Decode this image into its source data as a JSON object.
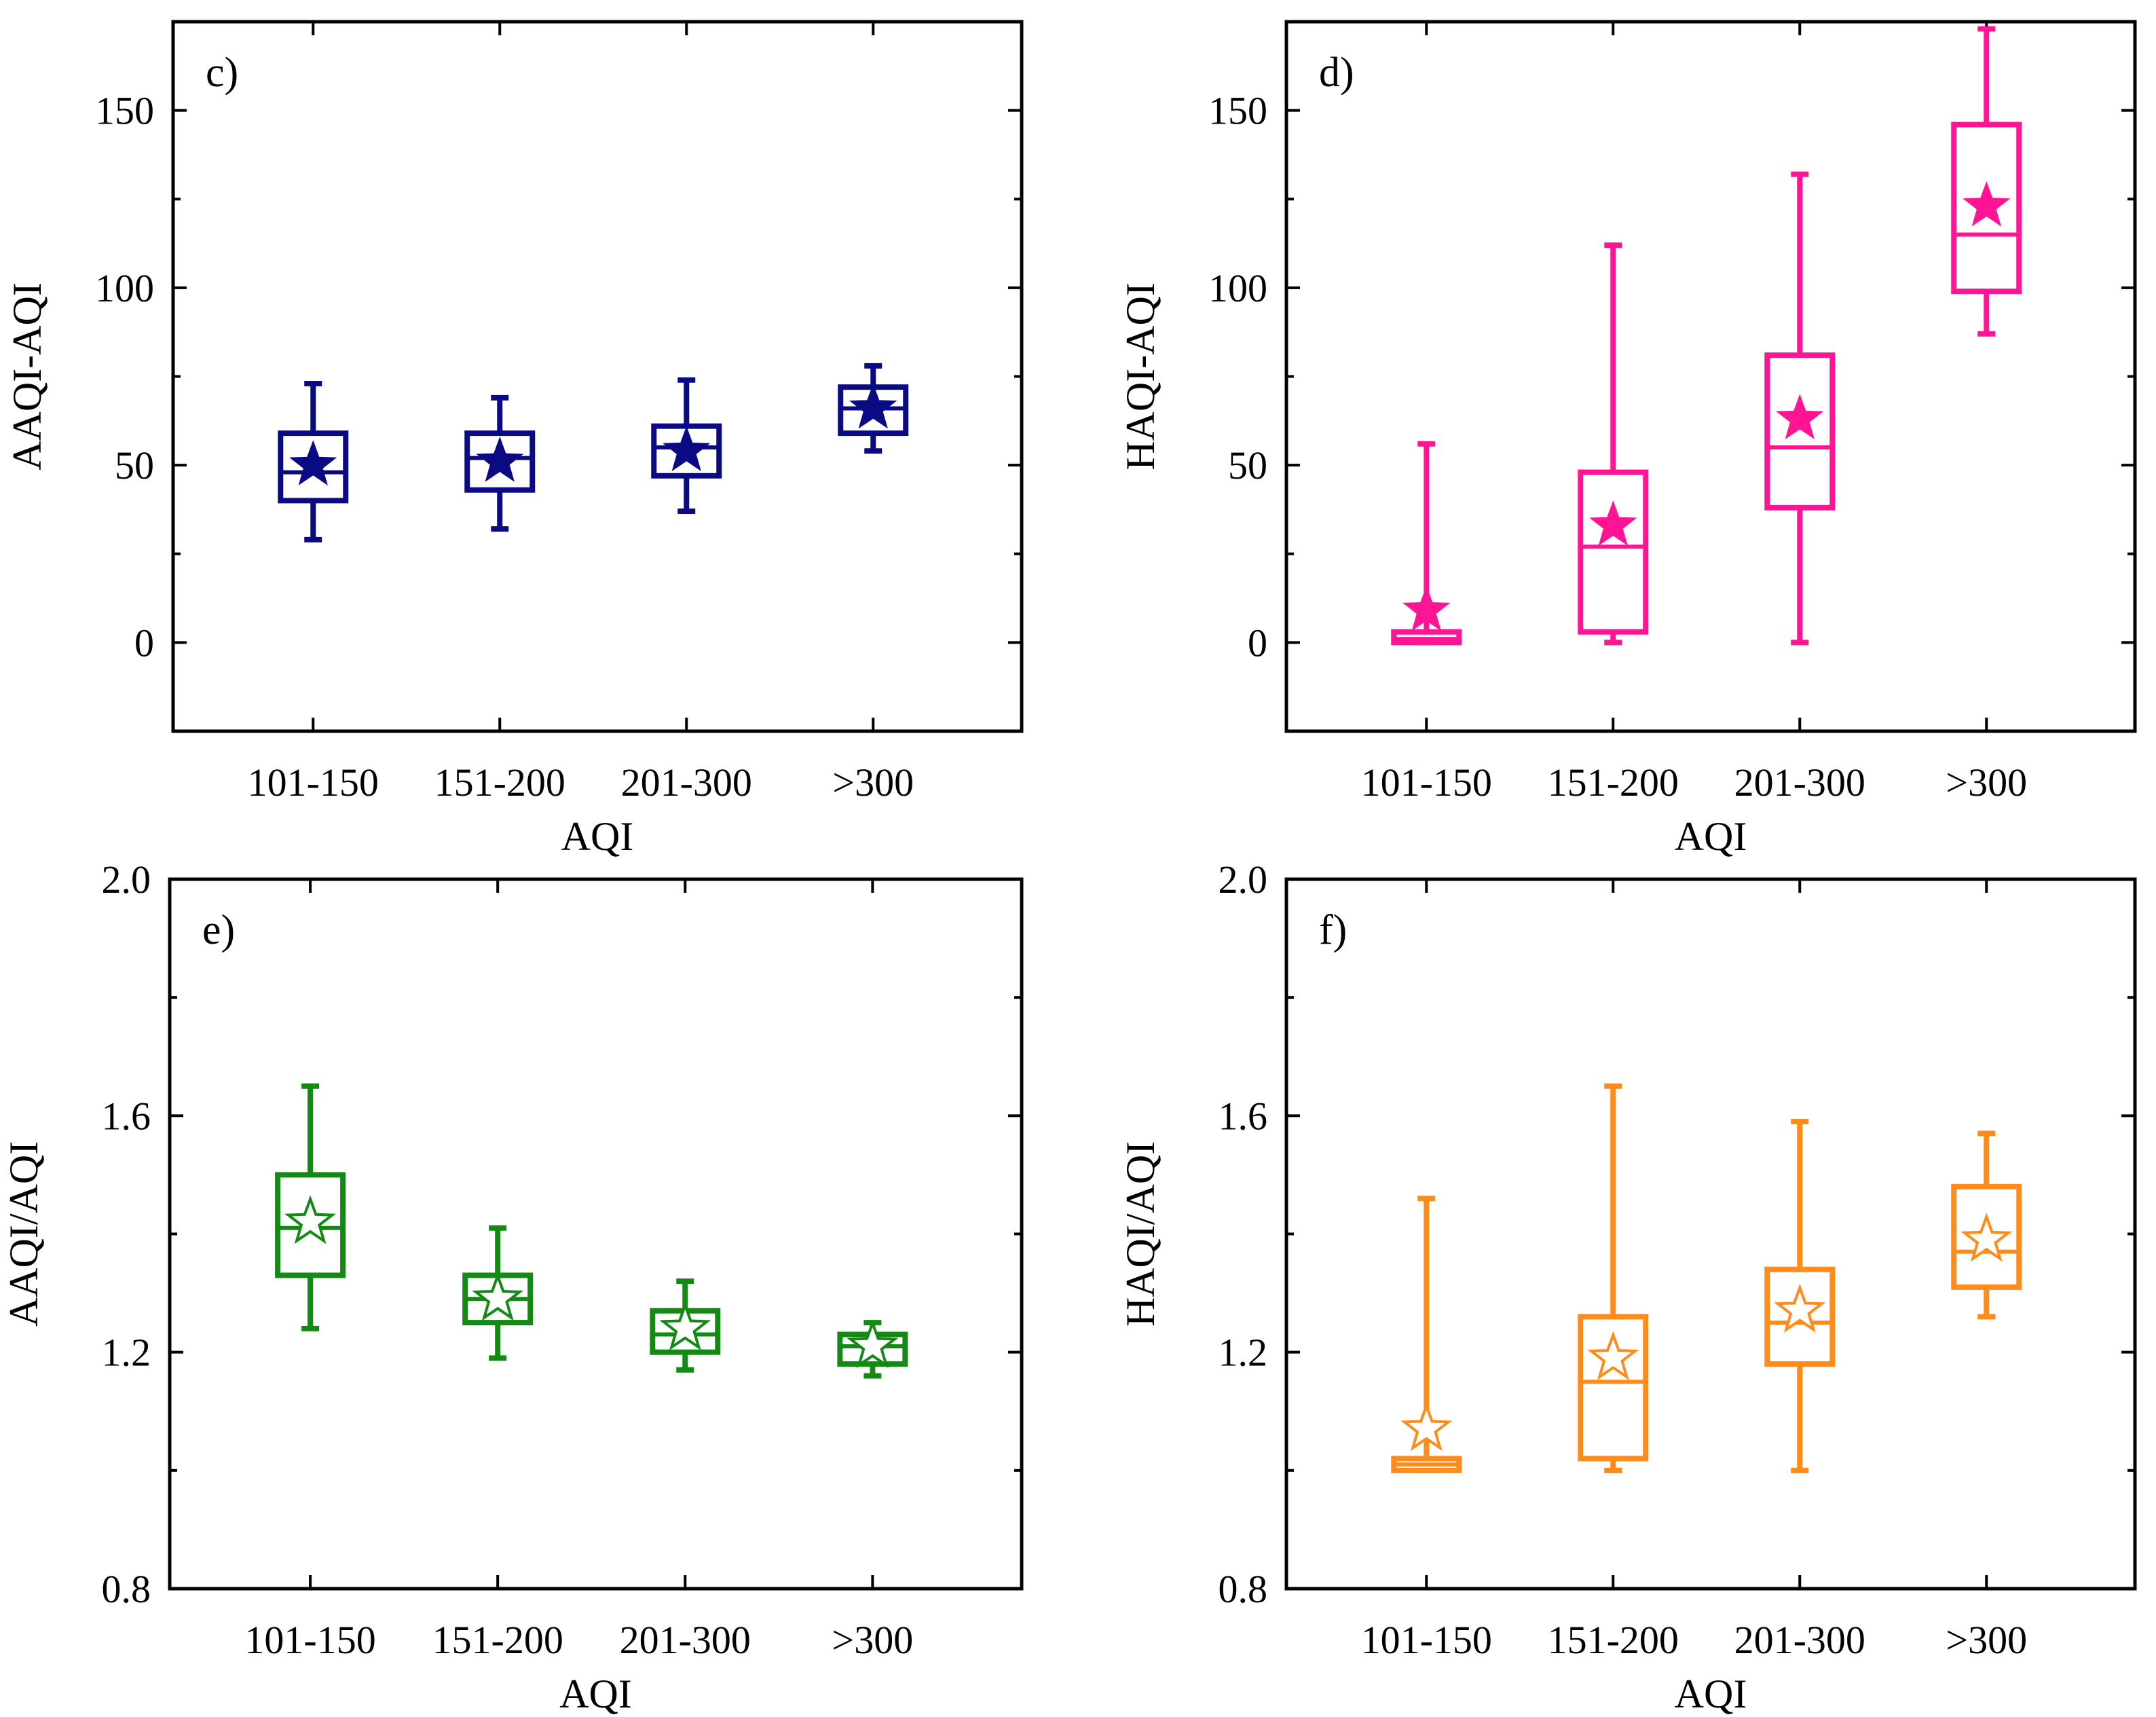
{
  "chart_data": [
    {
      "panel": "c)",
      "type": "box",
      "categories": [
        "101-150",
        "151-200",
        "201-300",
        ">300"
      ],
      "xlabel": "AQI",
      "ylabel": "AAQI-AQI",
      "ylim": [
        -25,
        175
      ],
      "yticks": [
        0,
        50,
        100,
        150
      ],
      "ytick_labels": [
        "0",
        "50",
        "100",
        "150"
      ],
      "color": "#0a0a82",
      "mean_marker": "filled-star",
      "boxes": [
        {
          "whisker_low": 29,
          "q1": 40,
          "median": 48,
          "q3": 59,
          "whisker_high": 73,
          "mean": 50
        },
        {
          "whisker_low": 32,
          "q1": 43,
          "median": 52,
          "q3": 59,
          "whisker_high": 69,
          "mean": 51
        },
        {
          "whisker_low": 37,
          "q1": 47,
          "median": 55,
          "q3": 61,
          "whisker_high": 74,
          "mean": 54
        },
        {
          "whisker_low": 54,
          "q1": 59,
          "median": 66,
          "q3": 72,
          "whisker_high": 78,
          "mean": 66
        }
      ]
    },
    {
      "panel": "d)",
      "type": "box",
      "categories": [
        "101-150",
        "151-200",
        "201-300",
        ">300"
      ],
      "xlabel": "AQI",
      "ylabel": "HAQI-AQI",
      "ylim": [
        -25,
        175
      ],
      "yticks": [
        0,
        50,
        100,
        150
      ],
      "ytick_labels": [
        "0",
        "50",
        "100",
        "150"
      ],
      "color": "#ff1493",
      "mean_marker": "filled-star",
      "boxes": [
        {
          "whisker_low": 0,
          "q1": 0,
          "median": 1,
          "q3": 3,
          "whisker_high": 56,
          "mean": 9
        },
        {
          "whisker_low": 0,
          "q1": 3,
          "median": 27,
          "q3": 48,
          "whisker_high": 112,
          "mean": 33
        },
        {
          "whisker_low": 0,
          "q1": 38,
          "median": 55,
          "q3": 81,
          "whisker_high": 132,
          "mean": 63
        },
        {
          "whisker_low": 87,
          "q1": 99,
          "median": 115,
          "q3": 146,
          "whisker_high": 173,
          "mean": 123
        }
      ]
    },
    {
      "panel": "e)",
      "type": "box",
      "categories": [
        "101-150",
        "151-200",
        "201-300",
        ">300"
      ],
      "xlabel": "AQI",
      "ylabel": "AAQI/AQI",
      "ylim": [
        0.8,
        2.0
      ],
      "yticks": [
        0.8,
        1.2,
        1.6,
        2.0
      ],
      "ytick_labels": [
        "0.8",
        "1.2",
        "1.6",
        "2.0"
      ],
      "color": "#138a13",
      "mean_marker": "open-star",
      "boxes": [
        {
          "whisker_low": 1.24,
          "q1": 1.33,
          "median": 1.41,
          "q3": 1.5,
          "whisker_high": 1.65,
          "mean": 1.42
        },
        {
          "whisker_low": 1.19,
          "q1": 1.25,
          "median": 1.29,
          "q3": 1.33,
          "whisker_high": 1.41,
          "mean": 1.29
        },
        {
          "whisker_low": 1.17,
          "q1": 1.2,
          "median": 1.23,
          "q3": 1.27,
          "whisker_high": 1.32,
          "mean": 1.24
        },
        {
          "whisker_low": 1.16,
          "q1": 1.18,
          "median": 1.21,
          "q3": 1.23,
          "whisker_high": 1.25,
          "mean": 1.21
        }
      ]
    },
    {
      "panel": "f)",
      "type": "box",
      "categories": [
        "101-150",
        "151-200",
        "201-300",
        ">300"
      ],
      "xlabel": "AQI",
      "ylabel": "HAQI/AQI",
      "ylim": [
        0.8,
        2.0
      ],
      "yticks": [
        0.8,
        1.2,
        1.6,
        2.0
      ],
      "ytick_labels": [
        "0.8",
        "1.2",
        "1.6",
        "2.0"
      ],
      "color": "#ff8c1a",
      "mean_marker": "open-star",
      "boxes": [
        {
          "whisker_low": 1.0,
          "q1": 1.0,
          "median": 1.01,
          "q3": 1.02,
          "whisker_high": 1.46,
          "mean": 1.07
        },
        {
          "whisker_low": 1.0,
          "q1": 1.02,
          "median": 1.15,
          "q3": 1.26,
          "whisker_high": 1.65,
          "mean": 1.19
        },
        {
          "whisker_low": 1.0,
          "q1": 1.18,
          "median": 1.25,
          "q3": 1.34,
          "whisker_high": 1.59,
          "mean": 1.27
        },
        {
          "whisker_low": 1.26,
          "q1": 1.31,
          "median": 1.37,
          "q3": 1.48,
          "whisker_high": 1.57,
          "mean": 1.39
        }
      ]
    }
  ]
}
